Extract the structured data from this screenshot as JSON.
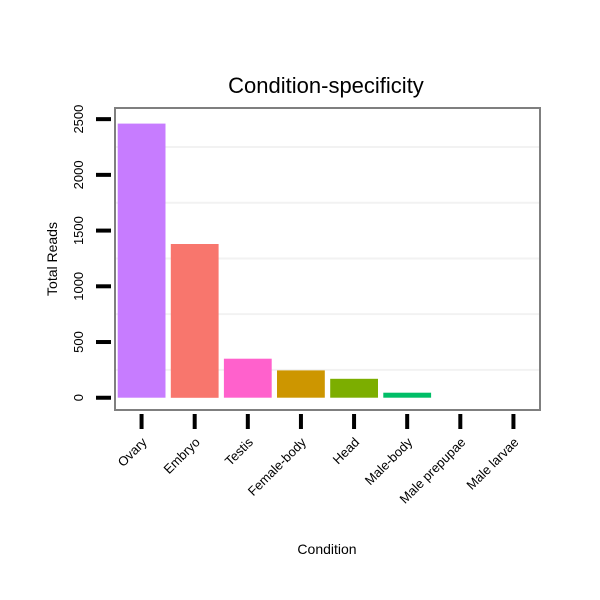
{
  "chart_data": {
    "type": "bar",
    "title": "Condition-specificity",
    "xlabel": "Condition",
    "ylabel": "Total Reads",
    "categories": [
      "Ovary",
      "Embryo",
      "Testis",
      "Female-body",
      "Head",
      "Male-body",
      "Male prepupae",
      "Male larvae"
    ],
    "values": [
      2460,
      1380,
      350,
      245,
      170,
      45,
      0,
      0
    ],
    "colors": [
      "#C77CFF",
      "#F8766D",
      "#FF61CC",
      "#CD9600",
      "#7CAE00",
      "#00BE67",
      "#00BFC4",
      "#00A9FF"
    ],
    "yticks": [
      0,
      500,
      1000,
      1500,
      2000,
      2500
    ],
    "ylim": [
      -110,
      2600
    ],
    "grid": true
  }
}
